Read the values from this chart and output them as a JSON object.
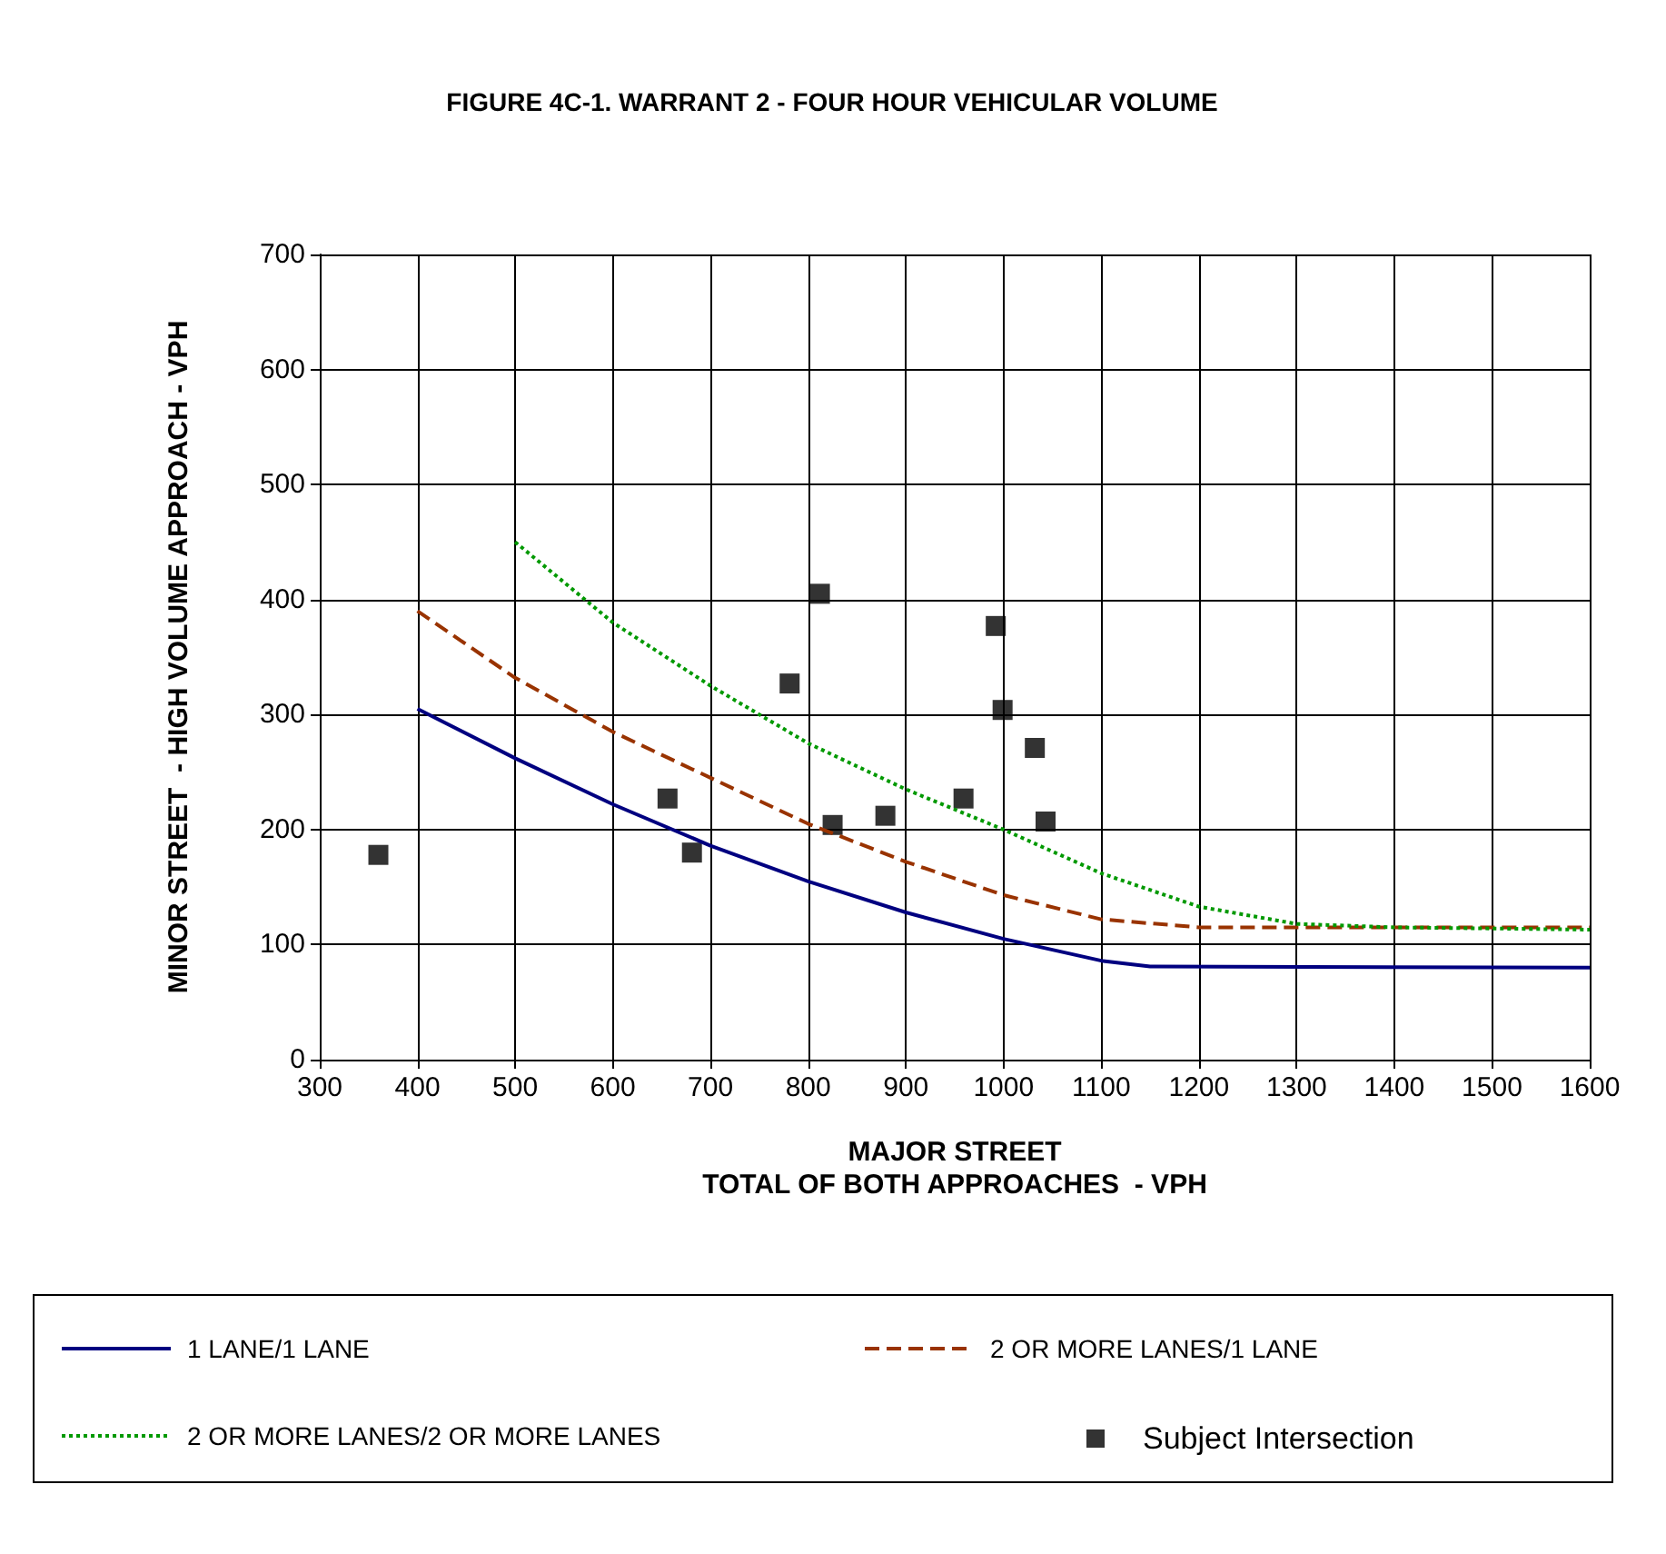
{
  "chart_data": {
    "type": "line",
    "title": "FIGURE 4C-1. WARRANT 2 - FOUR HOUR VEHICULAR VOLUME",
    "xlabel": "MAJOR STREET\nTOTAL OF BOTH APPROACHES  - VPH",
    "ylabel": "MINOR STREET  - HIGH VOLUME APPROACH - VPH",
    "xlim": [
      300,
      1600
    ],
    "xticks": [
      300,
      400,
      500,
      600,
      700,
      800,
      900,
      1000,
      1100,
      1200,
      1300,
      1400,
      1500,
      1600
    ],
    "ylim": [
      0,
      700
    ],
    "yticks": [
      0,
      100,
      200,
      300,
      400,
      500,
      600,
      700
    ],
    "grid": true,
    "legend": "bottom",
    "series": [
      {
        "name": "1 LANE/1 LANE",
        "color": "#000080",
        "line_style": "solid",
        "marker": "none",
        "x": [
          400,
          500,
          600,
          700,
          800,
          900,
          1000,
          1100,
          1150,
          1600
        ],
        "values": [
          305,
          262,
          222,
          186,
          155,
          128,
          105,
          86,
          81,
          80
        ]
      },
      {
        "name": "2 OR MORE LANES/1 LANE",
        "color": "#993300",
        "line_style": "dashed",
        "marker": "none",
        "x": [
          400,
          500,
          600,
          700,
          800,
          900,
          1000,
          1100,
          1200,
          1600
        ],
        "values": [
          390,
          332,
          285,
          245,
          205,
          172,
          143,
          122,
          115,
          115
        ]
      },
      {
        "name": "2 OR MORE LANES/2 OR MORE LANES",
        "color": "#009900",
        "line_style": "dotted",
        "marker": "none",
        "x": [
          500,
          600,
          700,
          800,
          900,
          1000,
          1100,
          1200,
          1300,
          1400,
          1600
        ],
        "values": [
          450,
          380,
          325,
          275,
          235,
          200,
          162,
          133,
          118,
          115,
          113
        ]
      },
      {
        "name": "Subject Intersection",
        "type": "scatter",
        "color": "#000000",
        "marker": "square",
        "x": [
          360,
          656,
          681,
          781,
          812,
          825,
          879,
          959,
          992,
          999,
          1032,
          1043
        ],
        "values": [
          178,
          227,
          180,
          327,
          405,
          204,
          212,
          227,
          377,
          304,
          271,
          207
        ]
      }
    ]
  }
}
